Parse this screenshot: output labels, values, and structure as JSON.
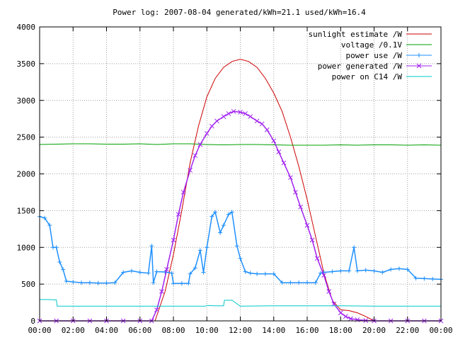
{
  "chart_data": {
    "type": "line",
    "title": "Power log: 2007-08-04 generated/kWh=21.1 used/kWh=16.4",
    "xlabel": "",
    "ylabel": "",
    "xlim": [
      0,
      24
    ],
    "ylim": [
      0,
      4000
    ],
    "x_ticks": [
      0,
      2,
      4,
      6,
      8,
      10,
      12,
      14,
      16,
      18,
      20,
      22,
      24
    ],
    "x_tick_labels": [
      "00:00",
      "02:00",
      "04:00",
      "06:00",
      "08:00",
      "10:00",
      "12:00",
      "14:00",
      "16:00",
      "18:00",
      "20:00",
      "22:00",
      "00:00"
    ],
    "y_ticks": [
      0,
      500,
      1000,
      1500,
      2000,
      2500,
      3000,
      3500,
      4000
    ],
    "y_tick_labels": [
      "0",
      "500",
      "1000",
      "1500",
      "2000",
      "2500",
      "3000",
      "3500",
      "4000"
    ],
    "grid": true,
    "legend_position": "top-right",
    "series": [
      {
        "name": "sunlight estimate /W",
        "color": "#cc0000",
        "marker": "none",
        "x": [
          6.9,
          7.5,
          8.0,
          8.5,
          9.0,
          9.5,
          10.0,
          10.5,
          11.0,
          11.5,
          12.0,
          12.5,
          13.0,
          13.5,
          14.0,
          14.5,
          15.0,
          15.5,
          16.0,
          16.5,
          17.0,
          17.5,
          18.0,
          18.5,
          19.0,
          19.5,
          20.0
        ],
        "values": [
          0,
          400,
          900,
          1500,
          2150,
          2650,
          3050,
          3300,
          3450,
          3530,
          3560,
          3530,
          3450,
          3300,
          3100,
          2850,
          2500,
          2100,
          1650,
          1150,
          650,
          280,
          150,
          140,
          110,
          60,
          0
        ]
      },
      {
        "name": "voltage /0.1V",
        "color": "#00a000",
        "marker": "none",
        "x": [
          0,
          1,
          2,
          3,
          4,
          5,
          6,
          7,
          8,
          9,
          10,
          11,
          12,
          13,
          14,
          15,
          16,
          17,
          18,
          19,
          20,
          21,
          22,
          23,
          24
        ],
        "values": [
          2400,
          2405,
          2410,
          2410,
          2405,
          2405,
          2410,
          2400,
          2410,
          2410,
          2400,
          2395,
          2400,
          2400,
          2395,
          2390,
          2390,
          2390,
          2395,
          2390,
          2395,
          2395,
          2390,
          2395,
          2390
        ]
      },
      {
        "name": "power use /W",
        "color": "#1e90ff",
        "marker": "plus",
        "x": [
          0.0,
          0.3,
          0.6,
          0.8,
          1.0,
          1.2,
          1.4,
          1.6,
          2.0,
          2.5,
          3.0,
          3.5,
          4.0,
          4.5,
          5.0,
          5.5,
          6.0,
          6.5,
          6.7,
          6.8,
          7.0,
          7.5,
          7.9,
          8.0,
          8.5,
          8.9,
          9.0,
          9.3,
          9.6,
          9.8,
          10.0,
          10.3,
          10.5,
          10.8,
          11.0,
          11.3,
          11.5,
          11.8,
          12.0,
          12.3,
          12.6,
          13.0,
          13.5,
          14.0,
          14.5,
          15.0,
          15.5,
          16.0,
          16.5,
          16.8,
          17.0,
          17.5,
          18.0,
          18.5,
          18.8,
          19.0,
          19.5,
          20.0,
          20.5,
          21.0,
          21.5,
          22.0,
          22.5,
          23.0,
          23.5,
          24.0
        ],
        "values": [
          1420,
          1400,
          1300,
          1000,
          1000,
          800,
          700,
          540,
          530,
          520,
          520,
          515,
          515,
          520,
          660,
          680,
          660,
          650,
          1020,
          520,
          670,
          665,
          650,
          510,
          510,
          510,
          640,
          720,
          960,
          660,
          1000,
          1420,
          1480,
          1200,
          1300,
          1450,
          1480,
          1020,
          850,
          670,
          650,
          640,
          640,
          640,
          520,
          520,
          520,
          520,
          520,
          650,
          660,
          670,
          680,
          680,
          1000,
          680,
          690,
          680,
          660,
          700,
          710,
          700,
          580,
          575,
          570,
          565
        ]
      },
      {
        "name": "power generated /W",
        "color": "#a020f0",
        "marker": "cross",
        "x": [
          0,
          1,
          2,
          3,
          4,
          5,
          6,
          6.7,
          7.0,
          7.3,
          7.6,
          8.0,
          8.3,
          8.6,
          9.0,
          9.3,
          9.6,
          10.0,
          10.3,
          10.6,
          11.0,
          11.3,
          11.6,
          12.0,
          12.3,
          12.6,
          13.0,
          13.3,
          13.6,
          14.0,
          14.3,
          14.6,
          15.0,
          15.3,
          15.6,
          16.0,
          16.3,
          16.6,
          17.0,
          17.3,
          17.6,
          18.0,
          18.3,
          18.6,
          19.0,
          19.5,
          20.0,
          21,
          22,
          23,
          24
        ],
        "values": [
          0,
          0,
          0,
          0,
          0,
          0,
          0,
          0,
          150,
          400,
          700,
          1100,
          1450,
          1750,
          2050,
          2250,
          2400,
          2550,
          2650,
          2720,
          2780,
          2820,
          2850,
          2840,
          2820,
          2780,
          2720,
          2680,
          2600,
          2450,
          2300,
          2150,
          1950,
          1750,
          1550,
          1300,
          1100,
          850,
          620,
          400,
          230,
          110,
          60,
          30,
          15,
          5,
          0,
          0,
          0,
          0,
          0
        ]
      },
      {
        "name": "power on C14 /W",
        "color": "#00c8c8",
        "marker": "none",
        "x": [
          0,
          0.5,
          1.0,
          1.05,
          2,
          4,
          6,
          7,
          8,
          9,
          9.9,
          10.0,
          10.5,
          11.0,
          11.05,
          11.5,
          12,
          14,
          16,
          18,
          20,
          22,
          24
        ],
        "values": [
          290,
          290,
          285,
          200,
          200,
          200,
          200,
          200,
          200,
          200,
          200,
          210,
          205,
          205,
          280,
          280,
          200,
          205,
          205,
          205,
          200,
          200,
          200
        ]
      }
    ]
  }
}
